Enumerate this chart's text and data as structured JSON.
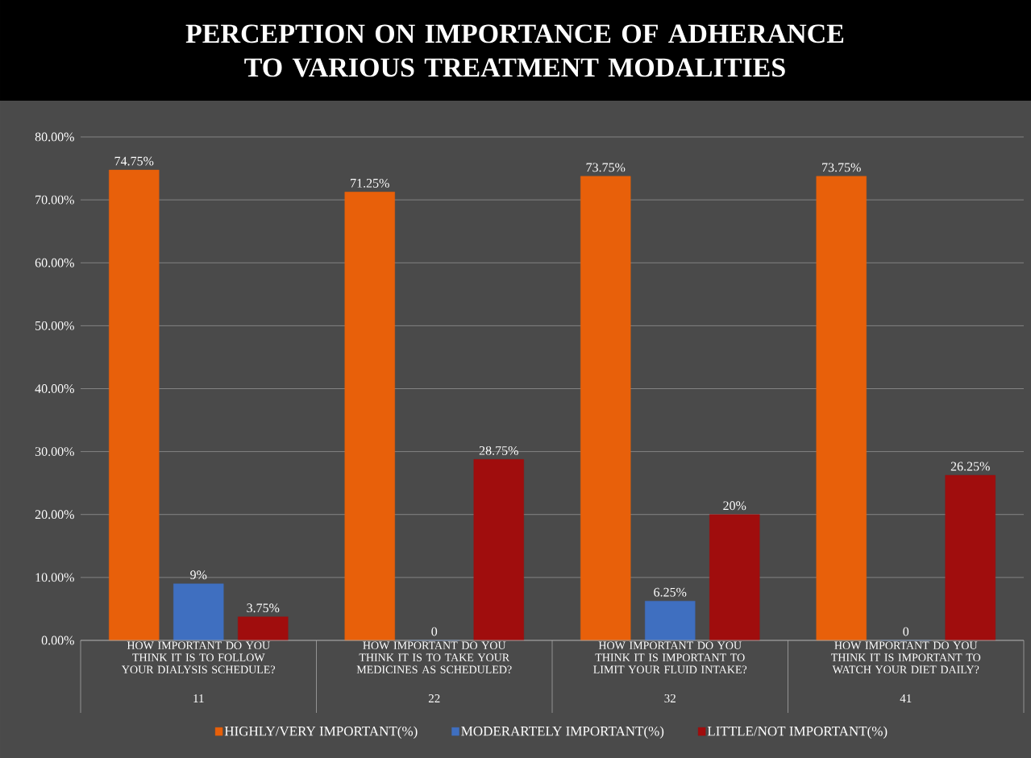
{
  "chart_data": {
    "type": "bar",
    "title": "PERCEPTION ON IMPORTANCE OF ADHERANCE TO VARIOUS TREATMENT MODALITIES",
    "categories": [
      "HOW IMPORTANT DO YOU THINK IT IS TO FOLLOW YOUR DIALYSIS SCHEDULE?",
      "HOW IMPORTANT DO YOU THINK IT IS TO TAKE YOUR MEDICINES AS SCHEDULED?",
      "HOW IMPORTANT DO YOU THINK IT IS IMPORTANT TO LIMIT YOUR FLUID INTAKE?",
      "HOW IMPORTANT DO YOU THINK IT IS IMPORTANT TO WATCH YOUR DIET DAILY?"
    ],
    "annotations": [
      "11",
      "22",
      "32",
      "41"
    ],
    "series": [
      {
        "name": "HIGHLY/VERY IMPORTANT(%)",
        "color": "#e8600a",
        "values": [
          74.75,
          71.25,
          73.75,
          73.75
        ],
        "value_labels": [
          "74.75%",
          "71.25%",
          "73.75%",
          "73.75%"
        ]
      },
      {
        "name": "MODERARTELY IMPORTANT(%)",
        "color": "#3f6fc0",
        "values": [
          9,
          0,
          6.25,
          0
        ],
        "value_labels": [
          "9%",
          "0",
          "6.25%",
          "0"
        ]
      },
      {
        "name": "LITTLE/NOT IMPORTANT(%)",
        "color": "#a00d0d",
        "values": [
          3.75,
          28.75,
          20,
          26.25
        ],
        "value_labels": [
          "3.75%",
          "28.75%",
          "20%",
          "26.25%"
        ]
      }
    ],
    "ylim": [
      0,
      80
    ],
    "yticks": [
      {
        "value": 0,
        "label": "0.00%"
      },
      {
        "value": 10,
        "label": "10.00%"
      },
      {
        "value": 20,
        "label": "20.00%"
      },
      {
        "value": 30,
        "label": "30.00%"
      },
      {
        "value": 40,
        "label": "40.00%"
      },
      {
        "value": 50,
        "label": "50.00%"
      },
      {
        "value": 60,
        "label": "60.00%"
      },
      {
        "value": 70,
        "label": "70.00%"
      },
      {
        "value": 80,
        "label": "80.00%"
      }
    ],
    "grid": "y",
    "legend": "bottom"
  }
}
